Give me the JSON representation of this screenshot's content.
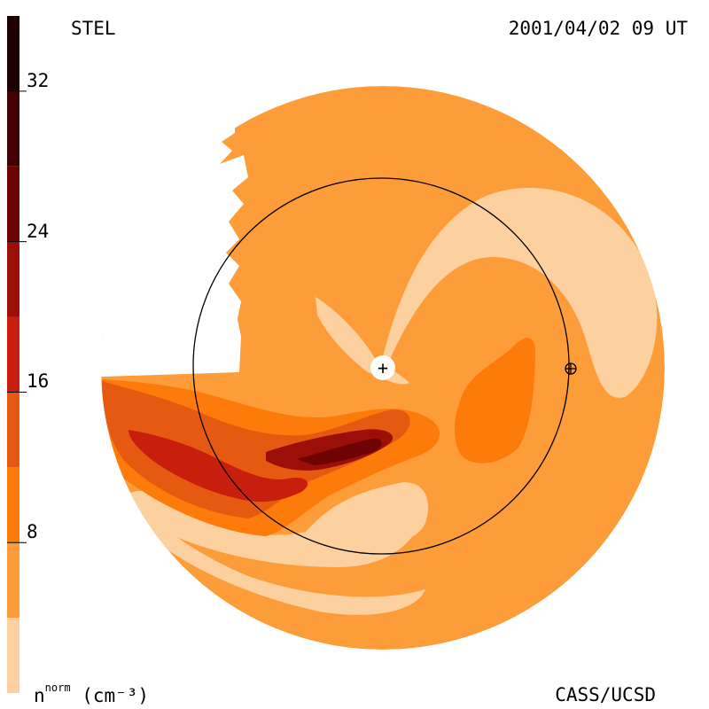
{
  "header": {
    "left_label": "STEL",
    "right_label": "2001/04/02 09 UT"
  },
  "footer": {
    "source_label": "CASS/UCSD",
    "unit_base": "n",
    "unit_sup": "norm",
    "unit_suffix": "(cm⁻³)"
  },
  "colorbar": {
    "ticks": [
      {
        "value": 8,
        "label": "8"
      },
      {
        "value": 16,
        "label": "16"
      },
      {
        "value": 24,
        "label": "24"
      },
      {
        "value": 32,
        "label": "32"
      }
    ],
    "range": [
      0,
      36
    ],
    "levels": [
      {
        "min": 0,
        "max": 4,
        "color": "#fdd0a0"
      },
      {
        "min": 4,
        "max": 8,
        "color": "#fd9d3a"
      },
      {
        "min": 8,
        "max": 12,
        "color": "#fd7b0a"
      },
      {
        "min": 12,
        "max": 16,
        "color": "#e55a10"
      },
      {
        "min": 16,
        "max": 20,
        "color": "#c81e0e"
      },
      {
        "min": 20,
        "max": 24,
        "color": "#9c0f08"
      },
      {
        "min": 24,
        "max": 28,
        "color": "#6e0303"
      },
      {
        "min": 28,
        "max": 32,
        "color": "#430103"
      },
      {
        "min": 32,
        "max": 36,
        "color": "#1e0000"
      }
    ]
  },
  "chart_data": {
    "type": "heatmap",
    "title": "STEL",
    "timestamp": "2001/04/02 09 UT",
    "colorbar_label": "n norm (cm-3)",
    "colorbar_ticks": [
      8,
      16,
      24,
      32
    ],
    "colorbar_range": [
      0,
      36
    ],
    "markers": [
      {
        "name": "sun",
        "symbol": "+"
      },
      {
        "name": "earth",
        "symbol": "⊕"
      }
    ],
    "reference_circle": "Earth orbit"
  }
}
